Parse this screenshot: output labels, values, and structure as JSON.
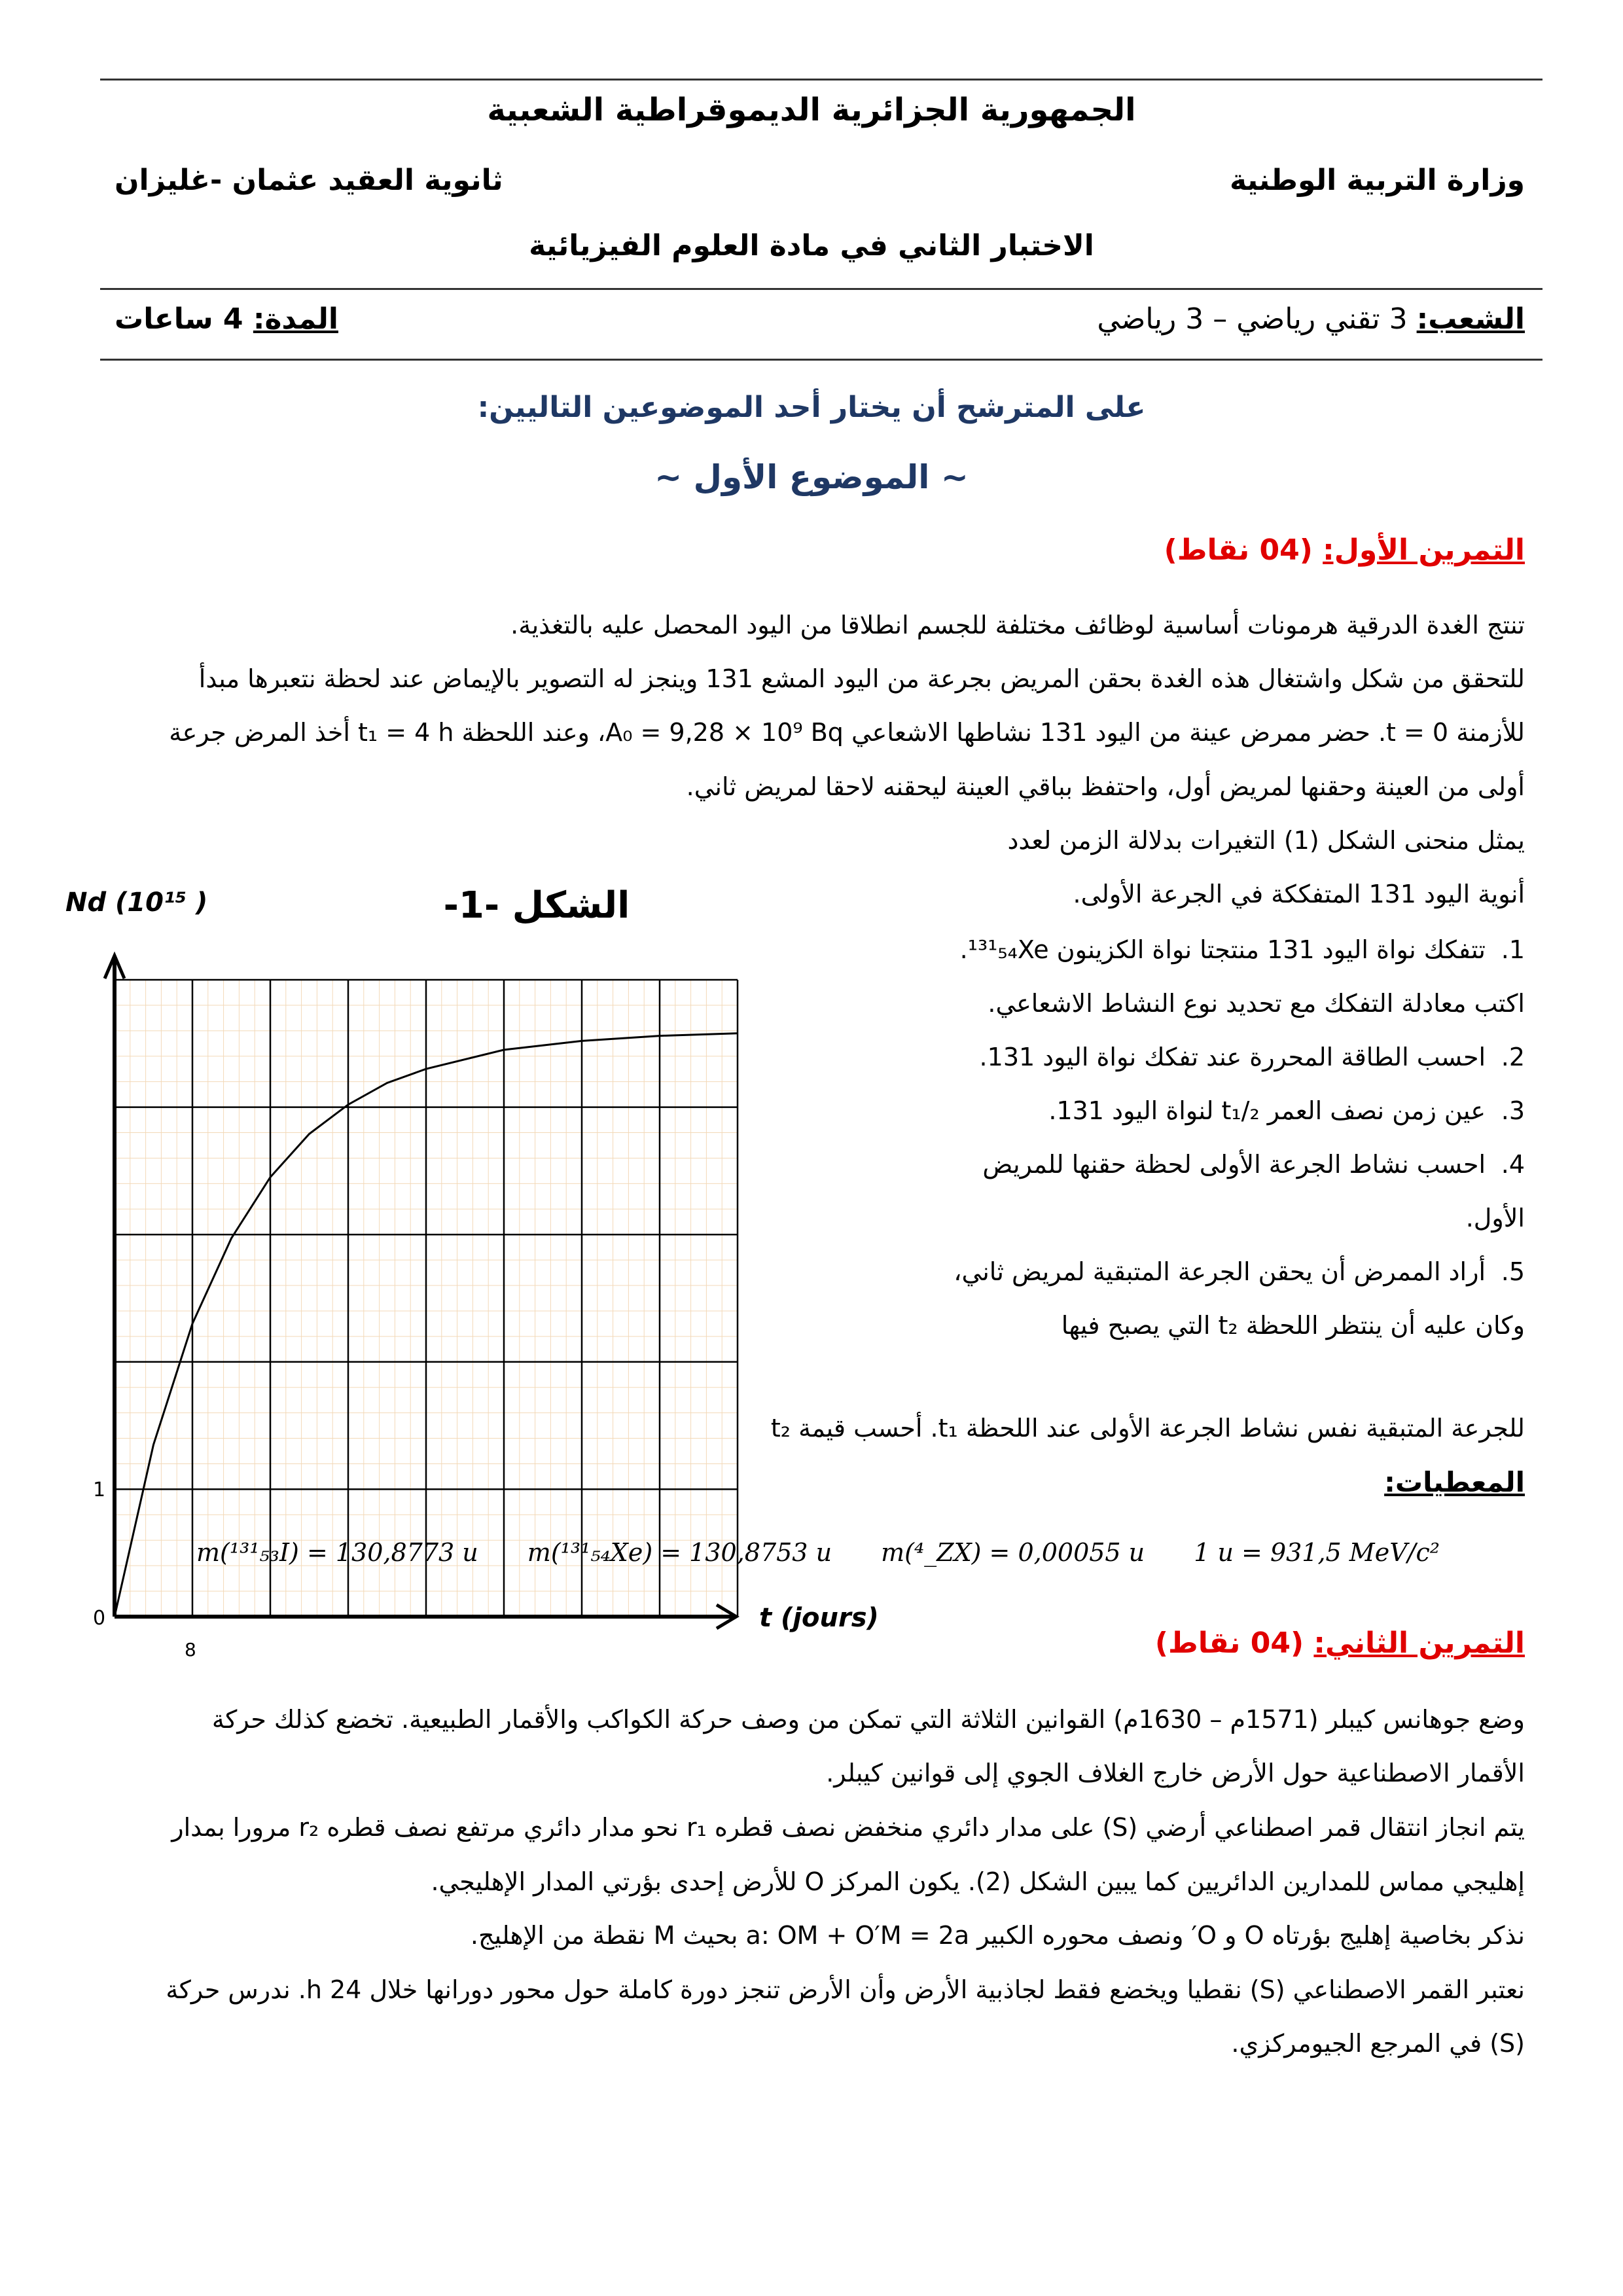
{
  "header": {
    "republic": "الجمهورية الجزائرية الديموقراطية الشعبية",
    "ministry": "وزارة التربية الوطنية",
    "school": "ثانوية العقيد عثمان -غليزان",
    "exam_title": "الاختبار الثاني في مادة العلوم الفيزيائية",
    "streams_label": "الشعب:",
    "streams_value": " 3 تقني رياضي – 3 رياضي",
    "duration_label": "المدة:",
    "duration_value": " 4 ساعات"
  },
  "instructions": "على المترشح أن يختار أحد الموضوعين التاليين:",
  "subject_title": "~ الموضوع الأول ~",
  "exercise1": {
    "title": "التمرين الأول:",
    "points": " (04 نقاط)",
    "paragraph_lines": [
      "تنتج الغدة الدرقية هرمونات أساسية لوظائف مختلفة للجسم انطلاقا من اليود المحصل عليه بالتغذية.",
      "للتحقق من شكل واشتغال هذه الغدة بحقن المريض بجرعة من اليود المشع 131 وينجز له التصوير بالإيماض عند لحظة نتعبرها مبدأ",
      "للأزمنة t = 0. حضر ممرض عينة من اليود 131 نشاطها الاشعاعي A₀ = 9,28 × 10⁹ Bq، وعند اللحظة t₁ = 4 h أخذ المرض جرعة",
      "أولى من العينة وحقنها لمريض أول، واحتفظ بباقي العينة ليحقنه لاحقا لمريض ثاني.",
      "يمثل منحنى الشكل (1) التغيرات بدلالة الزمن لعدد",
      "أنوية اليود 131 المتفككة في الجرعة الأولى."
    ],
    "questions": [
      {
        "num": "1.",
        "text": "تتفكك نواة اليود 131 منتجتا نواة الكزينون ¹³¹₅₄Xe. اكتب معادلة التفكك مع تحديد نوع النشاط الاشعاعي."
      },
      {
        "num": "2.",
        "text": "احسب الطاقة المحررة عند تفكك نواة اليود 131."
      },
      {
        "num": "3.",
        "text": "عين زمن نصف العمر t₁/₂ لنواة اليود 131."
      },
      {
        "num": "4.",
        "text": "احسب نشاط الجرعة الأولى لحظة حقنها للمريض الأول."
      },
      {
        "num": "5.",
        "text": "أراد الممرض أن يحقن الجرعة المتبقية لمريض ثاني، وكان عليه أن ينتظر اللحظة t₂ التي يصبح فيها"
      }
    ],
    "q5_last_line": "للجرعة المتبقية نفس نشاط الجرعة الأولى عند اللحظة t₁. أحسب قيمة t₂",
    "givens_label": "المعطيات:",
    "givens": [
      "m(¹³¹₅₃I) = 130,8773 u",
      "m(¹³¹₅₄Xe) = 130,8753 u",
      "m(⁴_ZX) = 0,00055 u",
      "1 u = 931,5 MeV/c²"
    ]
  },
  "chart_data": {
    "type": "line",
    "title": "الشكل -1-",
    "xlabel": "t (jours)",
    "ylabel": "Nd (10¹⁵ )",
    "x_tick_labels": [
      "0",
      "8"
    ],
    "y_tick_labels": [
      "1"
    ],
    "xlim": [
      0,
      64
    ],
    "ylim": [
      0,
      5
    ],
    "x_grid_step": 8,
    "y_grid_step": 1,
    "grid": true,
    "series": [
      {
        "x": [
          0,
          4,
          8,
          12,
          16,
          20,
          24,
          28,
          32,
          40,
          48,
          56,
          64
        ],
        "y": [
          0,
          1.35,
          2.3,
          2.97,
          3.45,
          3.79,
          4.02,
          4.19,
          4.3,
          4.45,
          4.52,
          4.56,
          4.58
        ]
      }
    ]
  },
  "exercise2": {
    "title": "التمرين الثاني:",
    "points": " (04 نقاط)",
    "paragraph_lines": [
      "وضع جوهانس كيبلر (1571م – 1630م) القوانين الثلاثة التي تمكن من وصف حركة الكواكب والأقمار الطبيعية. تخضع كذلك حركة",
      "الأقمار الاصطناعية حول الأرض خارج الغلاف الجوي إلى قوانين كيبلر.",
      "يتم انجاز انتقال قمر اصطناعي أرضي (S) على مدار دائري منخفض نصف قطره r₁ نحو مدار دائري مرتفع نصف قطره r₂ مرورا بمدار",
      "إهليجي مماس للمدارين الدائريين كما يبين الشكل (2). يكون المركز O للأرض إحدى بؤرتي المدار الإهليجي.",
      "نذكر بخاصية إهليج بؤرتاه O و O′ ونصف محوره الكبير a: OM + O′M = 2a بحيث M نقطة من الإهليج.",
      "نعتبر القمر الاصطناعي (S) نقطيا ويخضع فقط لجاذبية الأرض وأن الأرض تنجز دورة كاملة حول محور دورانها خلال 24 h. ندرس حركة",
      "(S) في المرجع الجيومركزي."
    ]
  },
  "colors": {
    "exercise_title": "#e00000",
    "instructions": "#1f3864",
    "grid_minor": "#f3d9b8"
  }
}
